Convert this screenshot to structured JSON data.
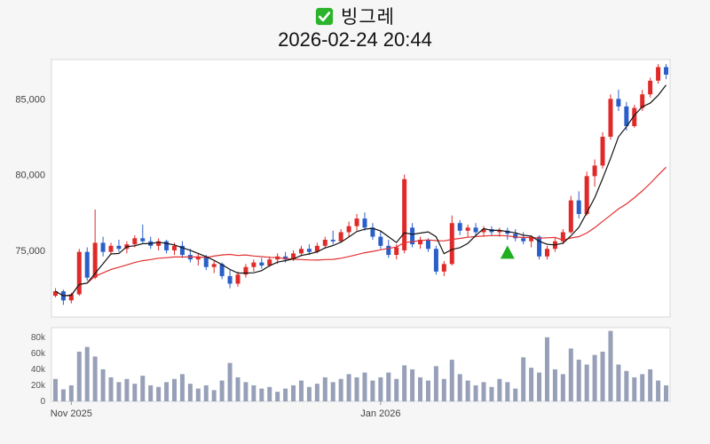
{
  "header": {
    "title": "빙그레",
    "timestamp": "2026-02-24 20:44",
    "icon_color": "#2bb32b"
  },
  "chart_data": {
    "type": "candlestick",
    "title": "빙그레",
    "subtitle": "2026-02-24 20:44",
    "legend_position": "none",
    "grid": false,
    "price_axis": {
      "range": [
        70600,
        87600
      ],
      "ticks": [
        {
          "value": 85000,
          "label": "85,000"
        },
        {
          "value": 80000,
          "label": "80,000"
        },
        {
          "value": 75000,
          "label": "75,000"
        }
      ]
    },
    "volume_axis": {
      "range": [
        0,
        92000
      ],
      "ticks": [
        {
          "value": 80000,
          "label": "80k"
        },
        {
          "value": 60000,
          "label": "60k"
        },
        {
          "value": 40000,
          "label": "40k"
        },
        {
          "value": 20000,
          "label": "20k"
        },
        {
          "value": 0,
          "label": "0"
        }
      ]
    },
    "x_ticks": [
      {
        "index": 2,
        "label": "Nov 2025"
      },
      {
        "index": 41,
        "label": "Jan 2026"
      }
    ],
    "candles": [
      [
        72000,
        72500,
        71900,
        72300
      ],
      [
        72300,
        72400,
        71400,
        71700
      ],
      [
        71700,
        72200,
        71500,
        72100
      ],
      [
        72100,
        75100,
        72000,
        74900
      ],
      [
        74900,
        75200,
        73000,
        73200
      ],
      [
        73200,
        77700,
        73100,
        75500
      ],
      [
        75500,
        75900,
        74600,
        74900
      ],
      [
        74900,
        75500,
        74700,
        75300
      ],
      [
        75300,
        75700,
        74900,
        75100
      ],
      [
        75100,
        75600,
        74800,
        75400
      ],
      [
        75400,
        76000,
        75200,
        75800
      ],
      [
        75800,
        76700,
        75500,
        75600
      ],
      [
        75600,
        75900,
        75100,
        75300
      ],
      [
        75300,
        75800,
        75000,
        75600
      ],
      [
        75600,
        75700,
        74800,
        75000
      ],
      [
        75000,
        75500,
        74700,
        75300
      ],
      [
        75300,
        75600,
        74500,
        74700
      ],
      [
        74700,
        75100,
        74200,
        74400
      ],
      [
        74400,
        74800,
        74000,
        74600
      ],
      [
        74600,
        74700,
        73700,
        73900
      ],
      [
        73900,
        74300,
        73500,
        74100
      ],
      [
        74100,
        74200,
        73100,
        73300
      ],
      [
        73300,
        73700,
        72500,
        72800
      ],
      [
        72800,
        73600,
        72600,
        73400
      ],
      [
        73400,
        74100,
        73200,
        73900
      ],
      [
        73900,
        74400,
        73600,
        74200
      ],
      [
        74200,
        74500,
        73800,
        74000
      ],
      [
        74000,
        74600,
        73900,
        74400
      ],
      [
        74400,
        74800,
        74100,
        74600
      ],
      [
        74600,
        74900,
        74200,
        74400
      ],
      [
        74400,
        75000,
        74300,
        74800
      ],
      [
        74800,
        75300,
        74600,
        75100
      ],
      [
        75100,
        75400,
        74700,
        74900
      ],
      [
        74900,
        75500,
        74800,
        75300
      ],
      [
        75300,
        75900,
        75100,
        75700
      ],
      [
        75700,
        76300,
        75400,
        75600
      ],
      [
        75600,
        76400,
        75500,
        76200
      ],
      [
        76200,
        76900,
        75900,
        76600
      ],
      [
        76600,
        77400,
        76300,
        77100
      ],
      [
        77100,
        77500,
        76300,
        76500
      ],
      [
        76500,
        76800,
        75700,
        75900
      ],
      [
        75900,
        76300,
        75100,
        75300
      ],
      [
        75300,
        75700,
        74500,
        74700
      ],
      [
        74700,
        75400,
        74400,
        75200
      ],
      [
        75000,
        80000,
        74800,
        79700
      ],
      [
        76500,
        76800,
        75200,
        75400
      ],
      [
        75400,
        75900,
        75100,
        75700
      ],
      [
        75700,
        75800,
        74900,
        75100
      ],
      [
        75100,
        75300,
        73400,
        73600
      ],
      [
        73600,
        74300,
        73300,
        74100
      ],
      [
        74100,
        77300,
        74000,
        76800
      ],
      [
        76800,
        77000,
        76000,
        76300
      ],
      [
        76300,
        76700,
        75900,
        76500
      ],
      [
        76500,
        76800,
        76000,
        76200
      ],
      [
        76200,
        76600,
        75900,
        76400
      ],
      [
        76400,
        76600,
        76000,
        76200
      ],
      [
        76200,
        76500,
        75900,
        76300
      ],
      [
        76300,
        76500,
        75700,
        76100
      ],
      [
        76100,
        76400,
        75600,
        75800
      ],
      [
        75800,
        76200,
        75400,
        75600
      ],
      [
        75600,
        76000,
        75200,
        75900
      ],
      [
        75900,
        76000,
        74400,
        74600
      ],
      [
        74600,
        75300,
        74400,
        75100
      ],
      [
        75100,
        75800,
        74900,
        75600
      ],
      [
        75600,
        76400,
        75400,
        76200
      ],
      [
        76200,
        78600,
        76100,
        78300
      ],
      [
        78300,
        78900,
        77100,
        77400
      ],
      [
        77400,
        80200,
        77300,
        79900
      ],
      [
        79900,
        81000,
        79200,
        80600
      ],
      [
        80600,
        82800,
        80400,
        82500
      ],
      [
        82500,
        85300,
        82300,
        85000
      ],
      [
        85000,
        85600,
        84200,
        84500
      ],
      [
        84500,
        84800,
        82900,
        83200
      ],
      [
        83200,
        84600,
        83100,
        84400
      ],
      [
        84400,
        85600,
        84200,
        85300
      ],
      [
        85300,
        86400,
        85100,
        86200
      ],
      [
        86200,
        87300,
        86000,
        87100
      ],
      [
        87100,
        87300,
        86300,
        86600
      ]
    ],
    "volumes": [
      28000,
      15000,
      20000,
      62000,
      68000,
      56000,
      40000,
      30000,
      24000,
      28000,
      22000,
      32000,
      20000,
      18000,
      24000,
      28000,
      34000,
      22000,
      16000,
      20000,
      14000,
      26000,
      48000,
      30000,
      24000,
      20000,
      16000,
      18000,
      12000,
      16000,
      20000,
      26000,
      18000,
      22000,
      30000,
      24000,
      28000,
      34000,
      30000,
      36000,
      26000,
      30000,
      36000,
      28000,
      45000,
      40000,
      30000,
      26000,
      44000,
      28000,
      52000,
      34000,
      26000,
      20000,
      24000,
      18000,
      28000,
      24000,
      16000,
      55000,
      42000,
      36000,
      80000,
      40000,
      34000,
      66000,
      52000,
      46000,
      58000,
      62000,
      88000,
      46000,
      38000,
      30000,
      34000,
      40000,
      26000,
      20000
    ],
    "moving_averages": [
      {
        "name": "short",
        "window": 5,
        "color": "#141414"
      },
      {
        "name": "long",
        "window": 20,
        "color": "#e23030"
      }
    ],
    "marker": {
      "type": "triangle-up",
      "index": 57,
      "price": 74800,
      "color": "#1fae1f"
    },
    "colors": {
      "up": "#e02a2a",
      "down": "#2a5fc9",
      "volume": "#97a0b8",
      "plot_bg": "#ffffff",
      "plot_border": "#d8d8d8"
    }
  }
}
